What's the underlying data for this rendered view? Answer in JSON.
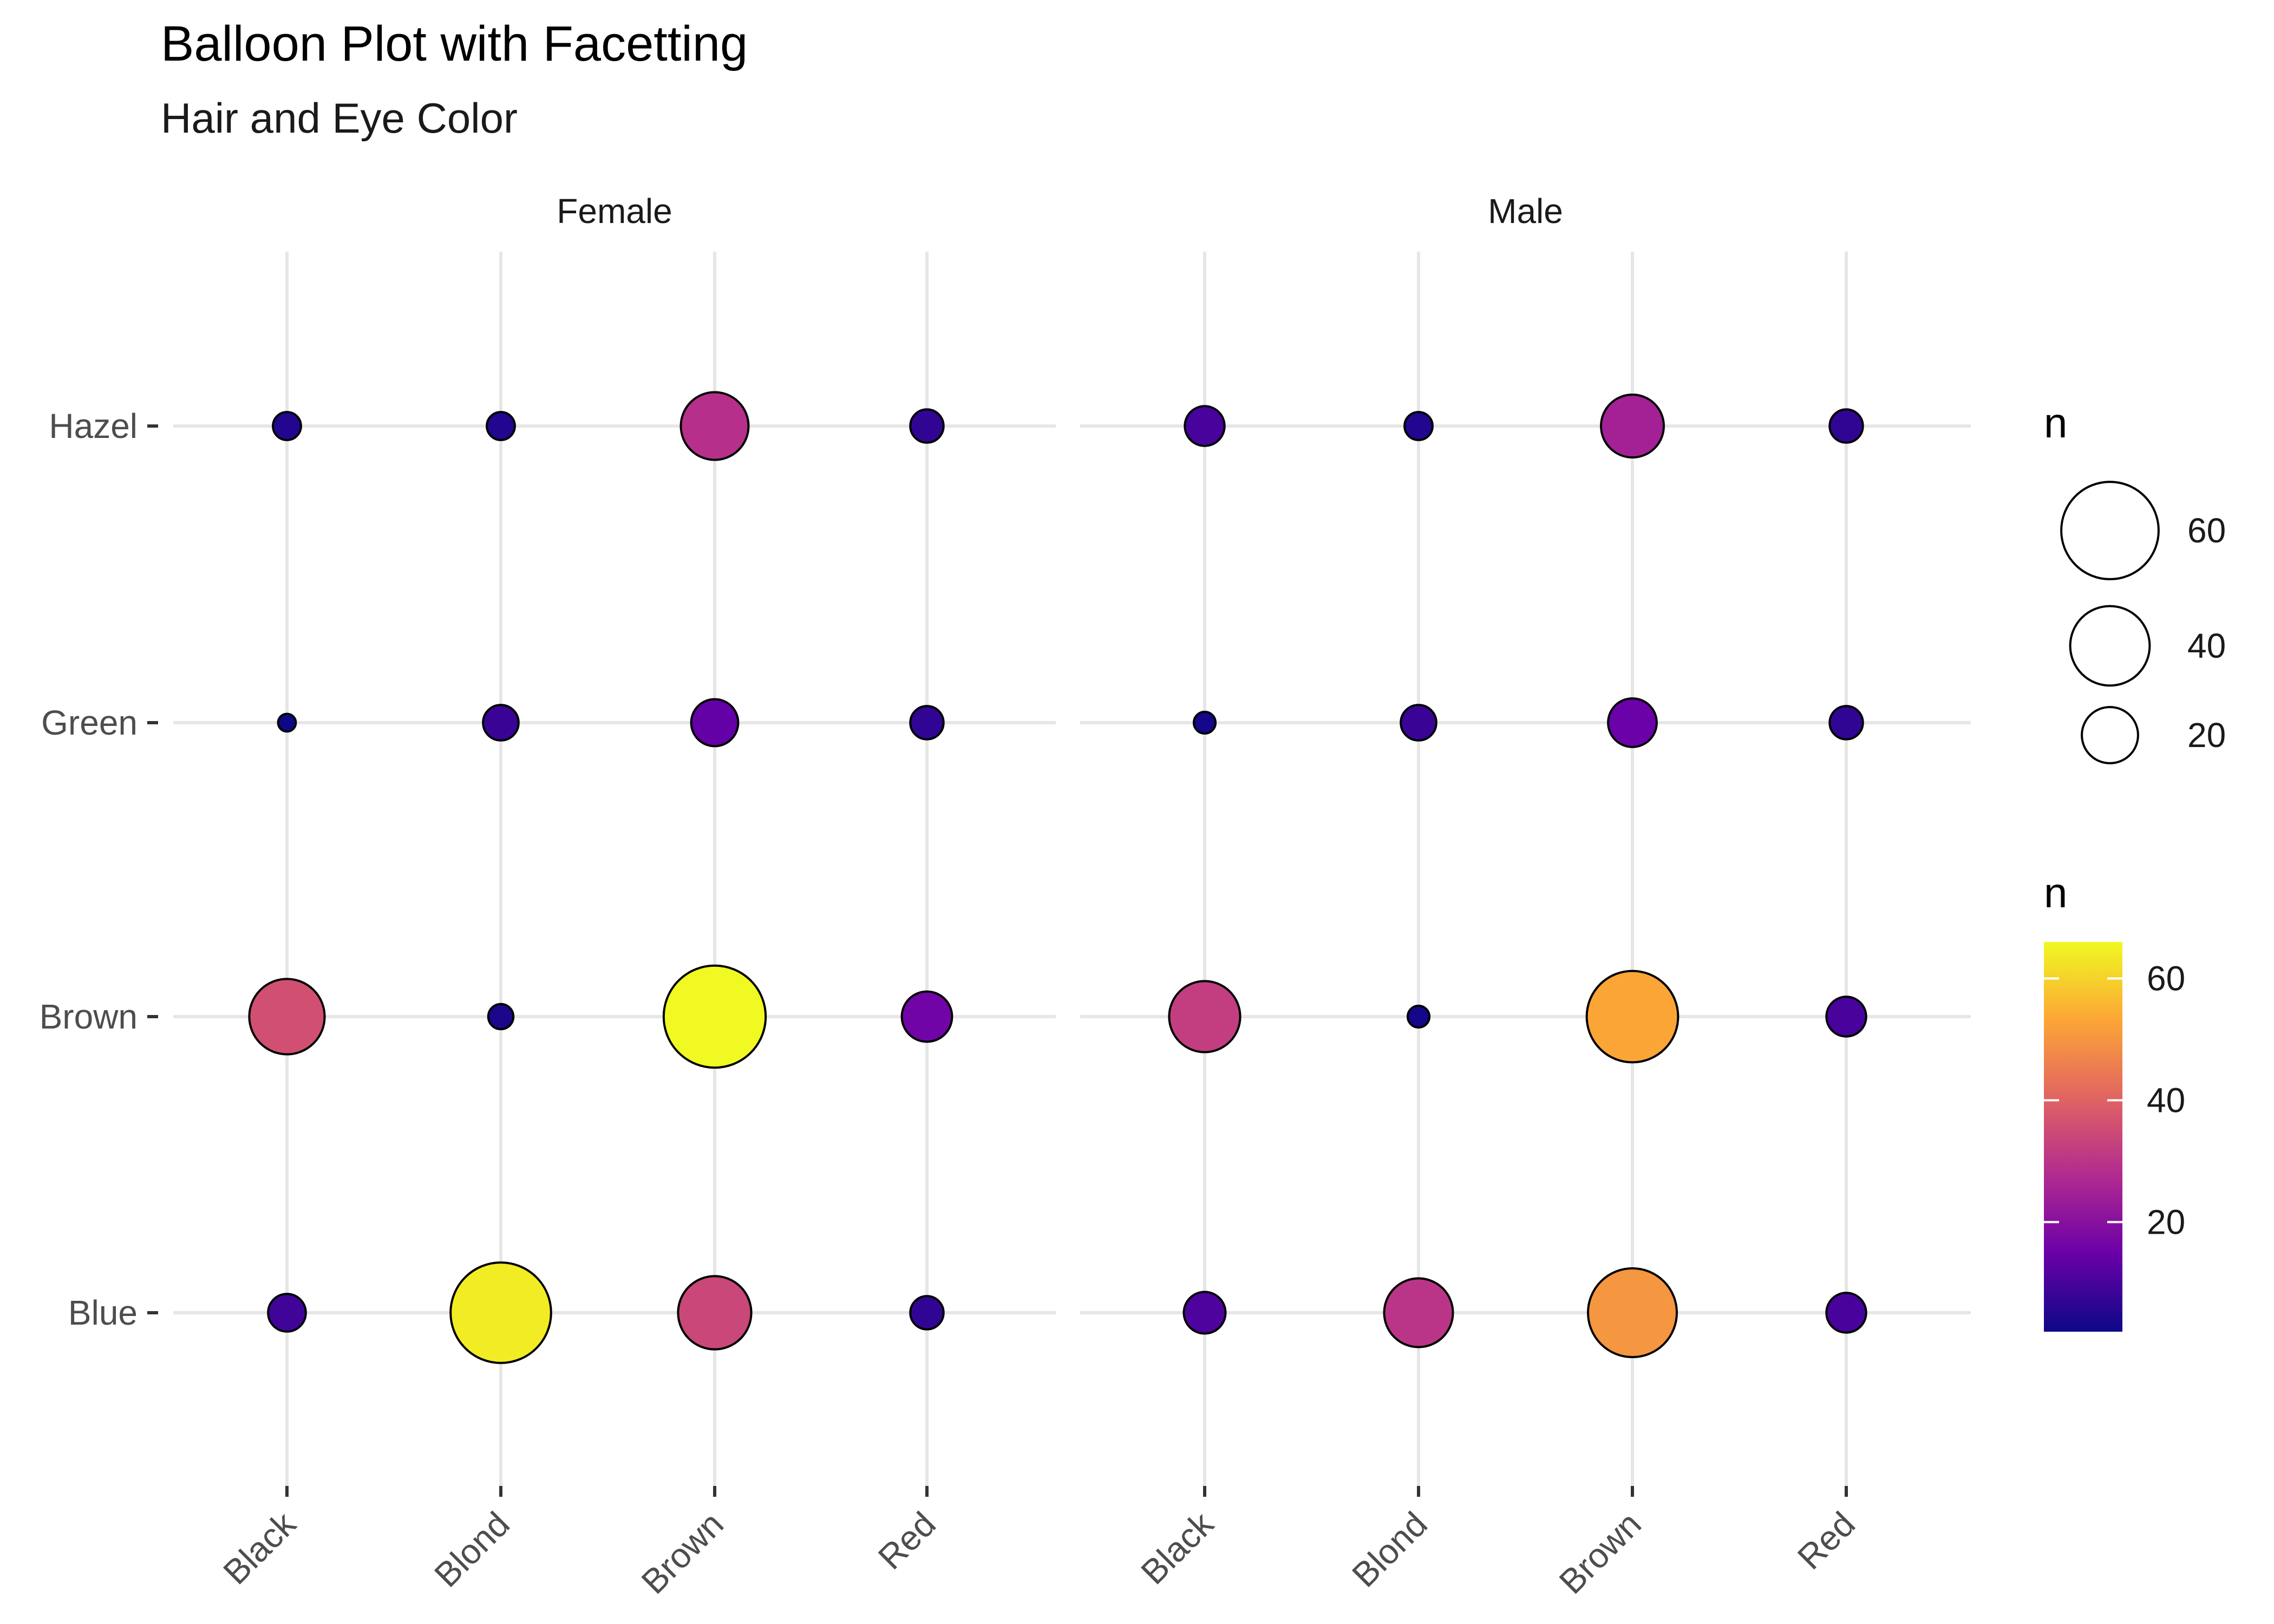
{
  "chart_data": {
    "type": "scatter",
    "title": "Balloon Plot with Facetting",
    "subtitle": "Hair and Eye Color",
    "xlabel": "",
    "ylabel": "",
    "facets": [
      "Female",
      "Male"
    ],
    "x_categories": [
      "Black",
      "Blond",
      "Brown",
      "Red"
    ],
    "y_categories": [
      "Blue",
      "Brown",
      "Green",
      "Hazel"
    ],
    "grid": true,
    "data": {
      "Female": [
        {
          "hair": "Black",
          "eye": "Hazel",
          "n": 5
        },
        {
          "hair": "Blond",
          "eye": "Hazel",
          "n": 5
        },
        {
          "hair": "Brown",
          "eye": "Hazel",
          "n": 29
        },
        {
          "hair": "Red",
          "eye": "Hazel",
          "n": 7
        },
        {
          "hair": "Black",
          "eye": "Green",
          "n": 2
        },
        {
          "hair": "Blond",
          "eye": "Green",
          "n": 8
        },
        {
          "hair": "Brown",
          "eye": "Green",
          "n": 14
        },
        {
          "hair": "Red",
          "eye": "Green",
          "n": 7
        },
        {
          "hair": "Black",
          "eye": "Brown",
          "n": 36
        },
        {
          "hair": "Blond",
          "eye": "Brown",
          "n": 4
        },
        {
          "hair": "Brown",
          "eye": "Brown",
          "n": 66
        },
        {
          "hair": "Red",
          "eye": "Brown",
          "n": 16
        },
        {
          "hair": "Black",
          "eye": "Blue",
          "n": 9
        },
        {
          "hair": "Blond",
          "eye": "Blue",
          "n": 64
        },
        {
          "hair": "Brown",
          "eye": "Blue",
          "n": 34
        },
        {
          "hair": "Red",
          "eye": "Blue",
          "n": 7
        }
      ],
      "Male": [
        {
          "hair": "Black",
          "eye": "Hazel",
          "n": 10
        },
        {
          "hair": "Blond",
          "eye": "Hazel",
          "n": 5
        },
        {
          "hair": "Brown",
          "eye": "Hazel",
          "n": 25
        },
        {
          "hair": "Red",
          "eye": "Hazel",
          "n": 7
        },
        {
          "hair": "Black",
          "eye": "Green",
          "n": 3
        },
        {
          "hair": "Blond",
          "eye": "Green",
          "n": 8
        },
        {
          "hair": "Brown",
          "eye": "Green",
          "n": 15
        },
        {
          "hair": "Red",
          "eye": "Green",
          "n": 7
        },
        {
          "hair": "Black",
          "eye": "Brown",
          "n": 32
        },
        {
          "hair": "Blond",
          "eye": "Brown",
          "n": 3
        },
        {
          "hair": "Brown",
          "eye": "Brown",
          "n": 53
        },
        {
          "hair": "Red",
          "eye": "Brown",
          "n": 10
        },
        {
          "hair": "Black",
          "eye": "Blue",
          "n": 11
        },
        {
          "hair": "Blond",
          "eye": "Blue",
          "n": 30
        },
        {
          "hair": "Brown",
          "eye": "Blue",
          "n": 50
        },
        {
          "hair": "Red",
          "eye": "Blue",
          "n": 10
        }
      ]
    },
    "size_legend": {
      "title": "n",
      "breaks": [
        60,
        40,
        20
      ]
    },
    "color_legend": {
      "title": "n",
      "breaks": [
        60,
        40,
        20
      ],
      "range": [
        2,
        66
      ]
    },
    "palette": [
      "#0d0887",
      "#6a00a8",
      "#b12a90",
      "#e16462",
      "#fca636",
      "#f0f921"
    ],
    "bubble_outline": "#000000",
    "grid_color": "#e6e6e6"
  }
}
